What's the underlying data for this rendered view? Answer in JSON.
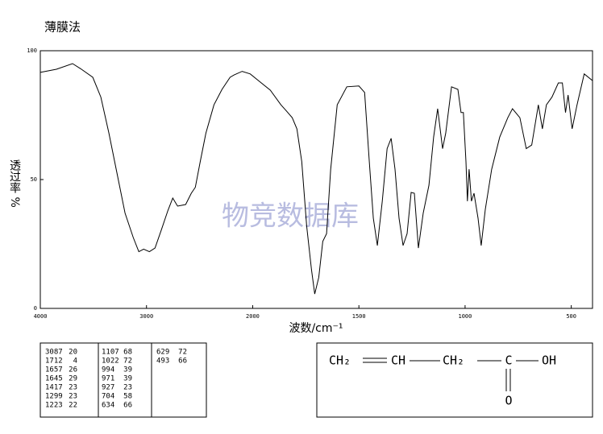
{
  "chart_data": {
    "type": "line",
    "title": "薄膜法",
    "xlabel": "波数/cm⁻¹",
    "ylabel": "透过率 %",
    "watermark": "物竞数据库",
    "xlim": [
      4000,
      400
    ],
    "ylim": [
      0,
      100
    ],
    "xticks": [
      4000,
      3000,
      2000,
      1500,
      1000,
      500
    ],
    "yticks": [
      0,
      50,
      100
    ],
    "xscale": {
      "break": 2000,
      "ratio": 2
    },
    "color": "#000000",
    "x": [
      4000,
      3848,
      3696,
      3620,
      3506,
      3430,
      3354,
      3278,
      3202,
      3125,
      3072,
      3027,
      2973,
      2920,
      2859,
      2798,
      2753,
      2707,
      2631,
      2578,
      2540,
      2494,
      2441,
      2365,
      2289,
      2213,
      2175,
      2099,
      2023,
      1973,
      1917,
      1867,
      1841,
      1814,
      1792,
      1769,
      1746,
      1723,
      1708,
      1689,
      1670,
      1652,
      1633,
      1602,
      1557,
      1500,
      1473,
      1451,
      1432,
      1413,
      1390,
      1367,
      1348,
      1330,
      1311,
      1292,
      1273,
      1254,
      1239,
      1220,
      1197,
      1170,
      1148,
      1129,
      1106,
      1091,
      1064,
      1034,
      1019,
      1008,
      996,
      989,
      981,
      970,
      958,
      939,
      924,
      905,
      875,
      837,
      799,
      777,
      742,
      712,
      686,
      655,
      636,
      617,
      591,
      561,
      542,
      527,
      515,
      496,
      473,
      439,
      400
    ],
    "values": [
      91.6,
      92.8,
      95,
      93,
      89.7,
      82,
      68,
      52.5,
      37,
      27.5,
      22,
      23,
      22,
      23.4,
      30.6,
      38,
      42.8,
      39.7,
      40.3,
      44.7,
      47,
      57,
      68,
      79,
      85,
      89.7,
      90.6,
      92,
      91,
      88.4,
      84.7,
      79,
      76.6,
      74,
      69.7,
      57,
      32,
      15,
      5.6,
      12,
      26,
      29,
      54,
      79,
      86,
      86.3,
      83.8,
      57,
      35,
      24.4,
      41.6,
      62,
      66,
      54,
      35,
      24.4,
      29,
      45,
      44.7,
      23.4,
      37,
      47.8,
      66.5,
      77.5,
      62,
      68,
      86,
      85,
      76,
      76,
      57,
      41.6,
      54,
      41.6,
      44.7,
      35,
      24.4,
      38.4,
      54,
      66.5,
      74,
      77.5,
      74,
      62,
      63.4,
      79,
      69.7,
      79,
      82,
      87.5,
      87.5,
      76,
      82.8,
      69.7,
      79,
      91,
      88.4
    ]
  },
  "peak_table": [
    [
      [
        3087,
        20
      ],
      [
        1712,
        4
      ],
      [
        1657,
        26
      ],
      [
        1645,
        29
      ],
      [
        1417,
        23
      ],
      [
        1299,
        23
      ],
      [
        1223,
        22
      ]
    ],
    [
      [
        1107,
        68
      ],
      [
        1022,
        72
      ],
      [
        994,
        39
      ],
      [
        971,
        39
      ],
      [
        927,
        23
      ],
      [
        704,
        58
      ],
      [
        634,
        66
      ]
    ],
    [
      [
        629,
        72
      ],
      [
        493,
        66
      ]
    ]
  ],
  "structure": {
    "groups": [
      "CH₂",
      "CH",
      "CH₂",
      "C",
      "OH"
    ],
    "carbonyl_oxygen": "O"
  }
}
